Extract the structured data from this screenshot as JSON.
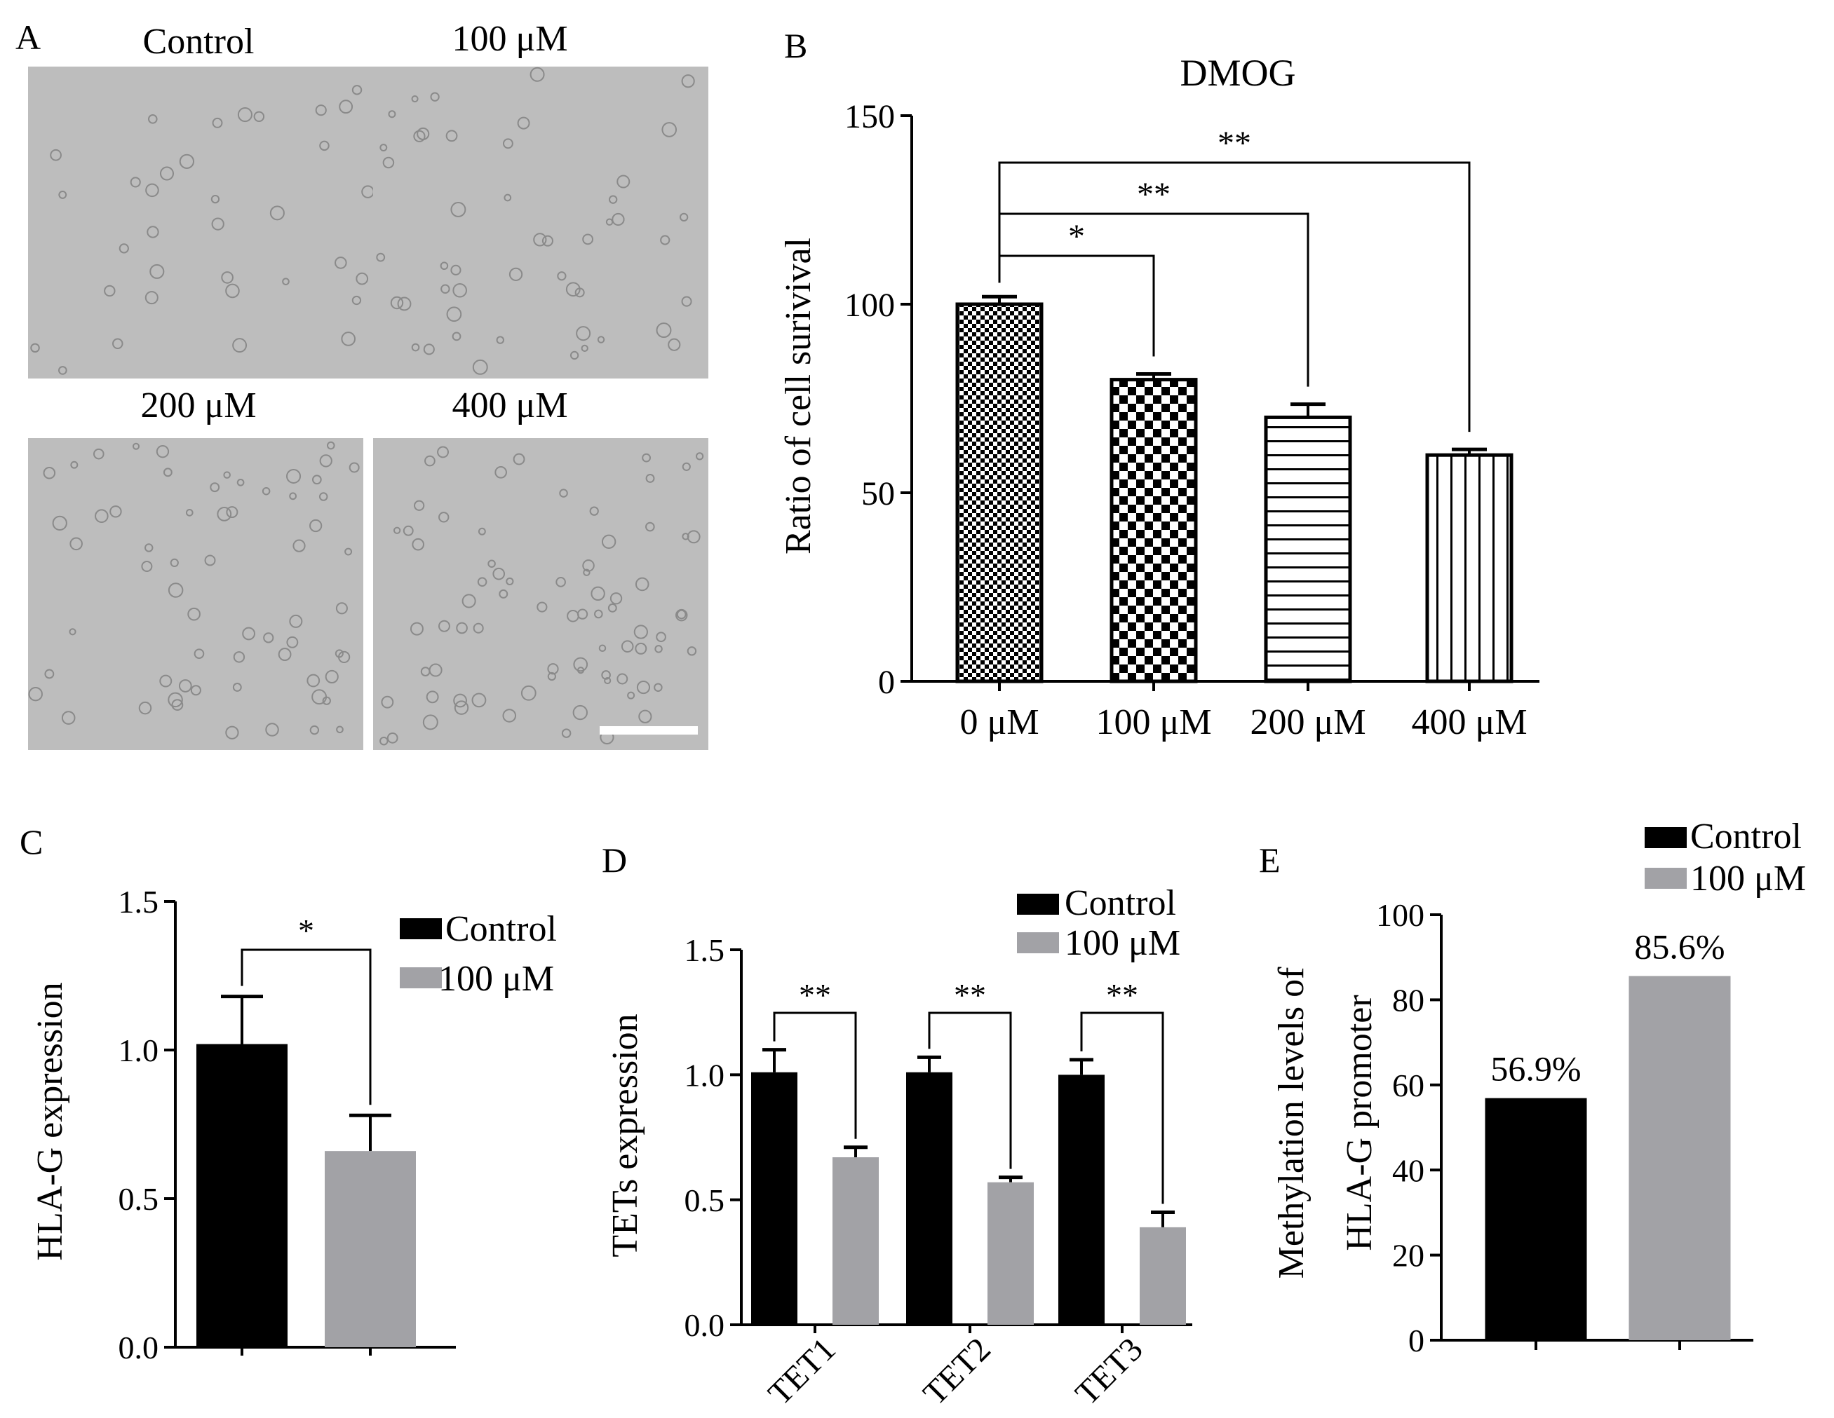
{
  "panels": {
    "A": {
      "label": "A",
      "images": [
        {
          "title": "Control"
        },
        {
          "title": "100 μM"
        },
        {
          "title": "200 μM"
        },
        {
          "title": "400 μM"
        }
      ]
    },
    "B": {
      "label": "B"
    },
    "C": {
      "label": "C"
    },
    "D": {
      "label": "D"
    },
    "E": {
      "label": "E"
    }
  },
  "colors": {
    "control": "#000000",
    "treated": "#a2a2a6",
    "micrograph_bg": "#bdbdbd",
    "cell_edge": "#8a8a8a"
  },
  "chart_data": [
    {
      "panel": "B",
      "type": "bar",
      "title": "DMOG",
      "ylabel": "Ratio of cell surivival",
      "xlabel": "",
      "categories": [
        "0 μM",
        "100 μM",
        "200 μM",
        "400 μM"
      ],
      "values": [
        100,
        80,
        70,
        60
      ],
      "errors": [
        2,
        1.5,
        3.5,
        1.5
      ],
      "patterns": [
        "checker-fine",
        "checker-coarse",
        "horizontal-stripes",
        "vertical-stripes"
      ],
      "ylim": [
        0,
        150
      ],
      "yticks": [
        "0",
        "50",
        "100",
        "150"
      ],
      "significance": [
        {
          "from": "0 μM",
          "to": "100 μM",
          "label": "*"
        },
        {
          "from": "0 μM",
          "to": "200 μM",
          "label": "**"
        },
        {
          "from": "0 μM",
          "to": "400 μM",
          "label": "**"
        }
      ]
    },
    {
      "panel": "C",
      "type": "bar",
      "ylabel": "HLA-G expression",
      "xlabel": "",
      "series": [
        {
          "name": "Control",
          "values": [
            1.02
          ],
          "errors": [
            0.16
          ]
        },
        {
          "name": "100 μM",
          "values": [
            0.66
          ],
          "errors": [
            0.12
          ]
        }
      ],
      "ylim": [
        0,
        1.5
      ],
      "yticks": [
        "0.0",
        "0.5",
        "1.0",
        "1.5"
      ],
      "legend": "top-right",
      "significance": [
        {
          "label": "*"
        }
      ]
    },
    {
      "panel": "D",
      "type": "bar",
      "ylabel": "TETs expression",
      "xlabel": "",
      "categories": [
        "TET1",
        "TET2",
        "TET3"
      ],
      "series": [
        {
          "name": "Control",
          "values": [
            1.01,
            1.01,
            1.0
          ],
          "errors": [
            0.09,
            0.06,
            0.06
          ]
        },
        {
          "name": "100 μM",
          "values": [
            0.67,
            0.57,
            0.39
          ],
          "errors": [
            0.04,
            0.02,
            0.06
          ]
        }
      ],
      "ylim": [
        0,
        1.5
      ],
      "yticks": [
        "0.0",
        "0.5",
        "1.0",
        "1.5"
      ],
      "legend": "top-right",
      "significance": [
        {
          "category": "TET1",
          "label": "**"
        },
        {
          "category": "TET2",
          "label": "**"
        },
        {
          "category": "TET3",
          "label": "**"
        }
      ]
    },
    {
      "panel": "E",
      "type": "bar",
      "ylabel": [
        "Methylation levels of",
        "HLA-G promoter"
      ],
      "xlabel": "",
      "series": [
        {
          "name": "Control",
          "values": [
            56.9
          ],
          "data_label": "56.9%"
        },
        {
          "name": "100 μM",
          "values": [
            85.6
          ],
          "data_label": "85.6%"
        }
      ],
      "ylim": [
        0,
        100
      ],
      "yticks": [
        "0",
        "20",
        "40",
        "60",
        "80",
        "100"
      ],
      "legend": "top-right"
    }
  ]
}
